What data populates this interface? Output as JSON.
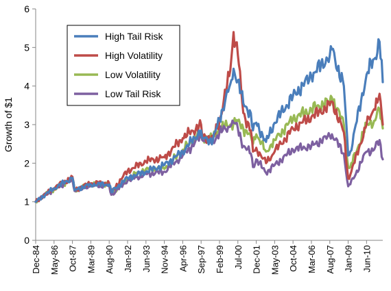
{
  "chart_data": {
    "type": "line",
    "title": "",
    "xlabel": "",
    "ylabel": "Growth of $1",
    "ylim": [
      0,
      6
    ],
    "yticks": [
      0,
      1,
      2,
      3,
      4,
      5,
      6
    ],
    "x_tick_labels": [
      "Dec-84",
      "May-86",
      "Oct-87",
      "Mar-89",
      "Aug-90",
      "Jan-92",
      "Jun-93",
      "Nov-94",
      "Apr-96",
      "Sep-97",
      "Feb-99",
      "Jul-00",
      "Dec-01",
      "May-03",
      "Oct-04",
      "Mar-06",
      "Aug-07",
      "Jan-09",
      "Jun-10"
    ],
    "grid": false,
    "legend_position": "top-left",
    "x": [
      "Dec-84",
      "May-86",
      "Oct-87",
      "Dec-87",
      "Mar-89",
      "Aug-90",
      "Oct-90",
      "Jan-92",
      "Jun-93",
      "Nov-94",
      "Apr-96",
      "Sep-97",
      "Oct-97",
      "Aug-98",
      "Feb-99",
      "Dec-99",
      "Mar-00",
      "Jul-00",
      "Dec-00",
      "Jul-01",
      "Sep-01",
      "Dec-01",
      "Sep-02",
      "May-03",
      "Oct-04",
      "Mar-06",
      "Aug-07",
      "Oct-07",
      "Sep-08",
      "Jan-09",
      "Mar-09",
      "Jun-10",
      "Jan-11",
      "Jun-11",
      "Sep-11"
    ],
    "series": [
      {
        "name": "High Tail Risk",
        "color": "#4a7ebb",
        "values": [
          1.0,
          1.35,
          1.62,
          1.3,
          1.45,
          1.45,
          1.25,
          1.62,
          1.78,
          1.95,
          2.3,
          2.85,
          2.65,
          2.6,
          3.15,
          4.05,
          4.45,
          4.15,
          3.55,
          3.3,
          2.85,
          3.05,
          2.55,
          3.05,
          3.75,
          4.25,
          4.8,
          4.95,
          4.0,
          2.2,
          2.3,
          4.3,
          4.7,
          5.15,
          4.1
        ]
      },
      {
        "name": "High Volatility",
        "color": "#be4b48",
        "values": [
          1.0,
          1.35,
          1.65,
          1.3,
          1.48,
          1.48,
          1.25,
          1.8,
          2.05,
          2.15,
          2.65,
          3.0,
          2.7,
          2.65,
          3.1,
          4.4,
          5.4,
          4.8,
          3.3,
          2.85,
          2.3,
          2.4,
          2.0,
          2.3,
          2.9,
          3.2,
          3.5,
          3.6,
          2.8,
          1.6,
          1.7,
          3.0,
          3.4,
          3.8,
          3.0
        ]
      },
      {
        "name": "Low Volatility",
        "color": "#98b954",
        "values": [
          1.0,
          1.33,
          1.6,
          1.3,
          1.45,
          1.45,
          1.2,
          1.6,
          1.85,
          1.85,
          2.35,
          2.8,
          2.7,
          2.65,
          2.9,
          3.0,
          3.05,
          3.1,
          2.9,
          2.7,
          2.5,
          2.75,
          2.3,
          2.6,
          3.15,
          3.4,
          3.6,
          3.7,
          3.0,
          1.9,
          1.9,
          3.0,
          3.1,
          3.4,
          2.9
        ]
      },
      {
        "name": "Low Tail Risk",
        "color": "#7d60a0",
        "values": [
          1.0,
          1.33,
          1.58,
          1.28,
          1.42,
          1.42,
          1.18,
          1.55,
          1.72,
          1.78,
          2.2,
          2.7,
          2.6,
          2.55,
          2.8,
          2.95,
          3.05,
          2.9,
          2.45,
          2.25,
          1.9,
          2.1,
          1.75,
          1.95,
          2.35,
          2.45,
          2.7,
          2.75,
          2.25,
          1.4,
          1.45,
          2.3,
          2.35,
          2.6,
          2.1
        ]
      }
    ]
  }
}
